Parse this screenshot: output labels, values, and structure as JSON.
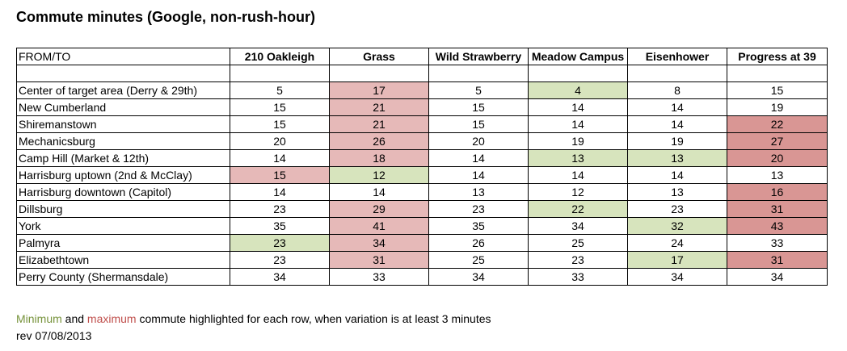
{
  "title": "Commute minutes (Google, non-rush-hour)",
  "table": {
    "corner": "FROM/TO",
    "columns": [
      "210 Oakleigh",
      "Grass",
      "Wild Strawberry",
      "Meadow Campus",
      "Eisenhower",
      "Progress at 39"
    ],
    "rows": [
      {
        "label": "Center of target area (Derry & 29th)",
        "values": [
          "5",
          "17",
          "5",
          "4",
          "8",
          "15"
        ],
        "marks": [
          "",
          "max",
          "",
          "min",
          "",
          ""
        ]
      },
      {
        "label": "New Cumberland",
        "values": [
          "15",
          "21",
          "15",
          "14",
          "14",
          "19"
        ],
        "marks": [
          "",
          "max",
          "",
          "",
          "",
          ""
        ]
      },
      {
        "label": "Shiremanstown",
        "values": [
          "15",
          "21",
          "15",
          "14",
          "14",
          "22"
        ],
        "marks": [
          "",
          "max",
          "",
          "",
          "",
          "maxs"
        ]
      },
      {
        "label": "Mechanicsburg",
        "values": [
          "20",
          "26",
          "20",
          "19",
          "19",
          "27"
        ],
        "marks": [
          "",
          "max",
          "",
          "",
          "",
          "maxs"
        ]
      },
      {
        "label": "Camp Hill (Market & 12th)",
        "values": [
          "14",
          "18",
          "14",
          "13",
          "13",
          "20"
        ],
        "marks": [
          "",
          "max",
          "",
          "min",
          "min",
          "maxs"
        ]
      },
      {
        "label": "Harrisburg uptown (2nd & McClay)",
        "values": [
          "15",
          "12",
          "14",
          "14",
          "14",
          "13"
        ],
        "marks": [
          "max",
          "min",
          "",
          "",
          "",
          ""
        ]
      },
      {
        "label": "Harrisburg downtown (Capitol)",
        "values": [
          "14",
          "14",
          "13",
          "12",
          "13",
          "16"
        ],
        "marks": [
          "",
          "",
          "",
          "",
          "",
          "maxs"
        ]
      },
      {
        "label": "Dillsburg",
        "values": [
          "23",
          "29",
          "23",
          "22",
          "23",
          "31"
        ],
        "marks": [
          "",
          "max",
          "",
          "min",
          "",
          "maxs"
        ]
      },
      {
        "label": "York",
        "values": [
          "35",
          "41",
          "35",
          "34",
          "32",
          "43"
        ],
        "marks": [
          "",
          "max",
          "",
          "",
          "min",
          "maxs"
        ]
      },
      {
        "label": "Palmyra",
        "values": [
          "23",
          "34",
          "26",
          "25",
          "24",
          "33"
        ],
        "marks": [
          "min",
          "max",
          "",
          "",
          "",
          ""
        ]
      },
      {
        "label": "Elizabethtown",
        "values": [
          "23",
          "31",
          "25",
          "23",
          "17",
          "31"
        ],
        "marks": [
          "",
          "max",
          "",
          "",
          "min",
          "maxs"
        ]
      },
      {
        "label": "Perry County (Shermansdale)",
        "values": [
          "34",
          "33",
          "34",
          "33",
          "34",
          "34"
        ],
        "marks": [
          "",
          "",
          "",
          "",
          "",
          ""
        ]
      }
    ]
  },
  "footer": {
    "min_word": "Minimum",
    "and_word": " and ",
    "max_word": "maximum",
    "rest": " commute highlighted for each row, when variation is at least 3 minutes",
    "rev": "rev 07/08/2013"
  },
  "colors": {
    "min_fill": "#d7e4bd",
    "max_fill": "#e6b9b8",
    "max_strong_fill": "#d99694",
    "min_text": "#77933c",
    "max_text": "#c0504d"
  }
}
